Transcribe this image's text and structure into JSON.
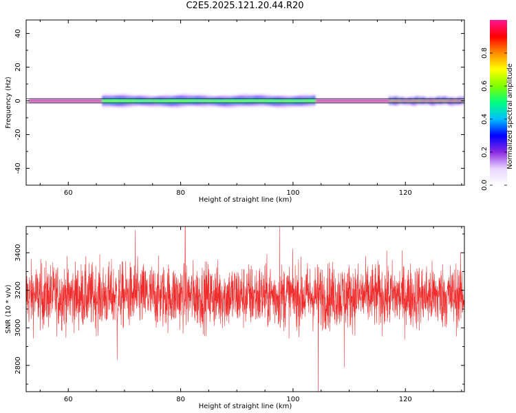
{
  "page": {
    "title": "C2E5.2025.121.20.44.R20"
  },
  "chart_data": [
    {
      "type": "heatmap",
      "title": "C2E5.2025.121.20.44.R20",
      "xlabel": "Height of straight line (km)",
      "ylabel": "Frequency (Hz)",
      "xlim": [
        52.5,
        130.5
      ],
      "ylim": [
        -50,
        48
      ],
      "xticks": [
        60,
        80,
        100,
        120
      ],
      "xtick_labels": [
        "60",
        "80",
        "100",
        "120"
      ],
      "yticks": [
        -40,
        -20,
        0,
        20,
        40
      ],
      "ytick_labels": [
        "-40",
        "-20",
        "0",
        "20",
        "40"
      ],
      "grid": false,
      "spectrum_center_hz": 0,
      "bands": [
        {
          "x_start": 53,
          "x_end": 66,
          "halfwidth_hz": 1.5,
          "peak_amplitude": 0.98
        },
        {
          "x_start": 66,
          "x_end": 104,
          "halfwidth_hz": 4.0,
          "peak_amplitude": 0.6
        },
        {
          "x_start": 104,
          "x_end": 117,
          "halfwidth_hz": 1.5,
          "peak_amplitude": 0.98
        },
        {
          "x_start": 117,
          "x_end": 130.5,
          "halfwidth_hz": 3.0,
          "peak_amplitude": 0.95
        }
      ],
      "colorbar": {
        "label": "Normalized spectral amplitude",
        "range": [
          0,
          1
        ],
        "ticks": [
          0.0,
          0.2,
          0.4,
          0.6,
          0.8
        ],
        "tick_labels": [
          "0.0",
          "0.2",
          "0.4",
          "0.6",
          "0.8"
        ],
        "colors": [
          "#ffffff",
          "#e9d5ff",
          "#8a2be2",
          "#0000ff",
          "#00bfff",
          "#00ff7f",
          "#7fff00",
          "#ffff00",
          "#ff8c00",
          "#ff0000",
          "#ff1493"
        ]
      }
    },
    {
      "type": "line",
      "xlabel": "Height of straight line (km)",
      "ylabel": "SNR (10 * v/v)",
      "xlim": [
        52.5,
        130.5
      ],
      "ylim": [
        2660,
        3540
      ],
      "xticks": [
        60,
        80,
        100,
        120
      ],
      "xtick_labels": [
        "60",
        "80",
        "100",
        "120"
      ],
      "yticks": [
        2800,
        3000,
        3200,
        3400
      ],
      "ytick_labels": [
        "2800",
        "3000",
        "3200",
        "3400"
      ],
      "grid": false,
      "line_color": "#ef2c2c",
      "mean_snr": 3170,
      "typical_range": [
        2950,
        3420
      ],
      "notable_points": [
        {
          "x": 68.7,
          "y": 2830
        },
        {
          "x": 71.9,
          "y": 3520
        },
        {
          "x": 80.8,
          "y": 3540
        },
        {
          "x": 97.6,
          "y": 3540
        },
        {
          "x": 104.5,
          "y": 2660
        },
        {
          "x": 109.1,
          "y": 2790
        }
      ]
    }
  ]
}
